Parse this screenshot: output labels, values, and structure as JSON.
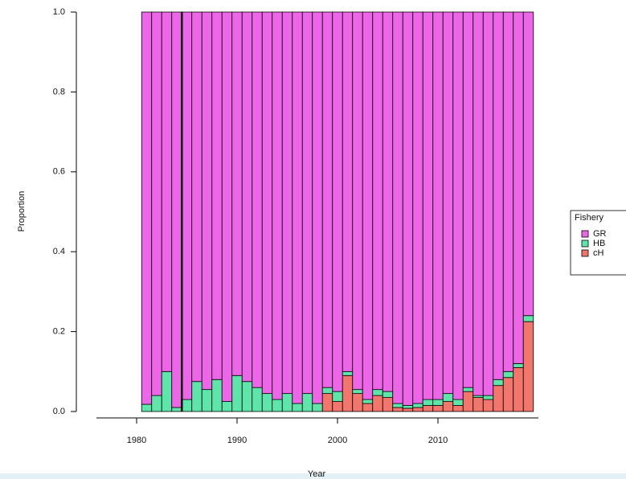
{
  "chart_data": {
    "type": "stacked-bar",
    "x_label": "Year",
    "y_label": "Proportion",
    "legend_title": "Fishery",
    "legend_position": "right",
    "x": [
      1981,
      1982,
      1983,
      1984,
      1985,
      1986,
      1987,
      1988,
      1989,
      1990,
      1991,
      1992,
      1993,
      1994,
      1995,
      1996,
      1997,
      1998,
      1999,
      2000,
      2001,
      2002,
      2003,
      2004,
      2005,
      2006,
      2007,
      2008,
      2009,
      2010,
      2011,
      2012,
      2013,
      2014,
      2015,
      2016,
      2017,
      2018,
      2019
    ],
    "series": [
      {
        "name": "GR",
        "color": "#ee66e8",
        "values": [
          0.982,
          0.96,
          0.9,
          0.99,
          0.97,
          0.925,
          0.945,
          0.92,
          0.975,
          0.91,
          0.925,
          0.94,
          0.955,
          0.97,
          0.955,
          0.98,
          0.955,
          0.98,
          0.94,
          0.95,
          0.9,
          0.945,
          0.97,
          0.945,
          0.95,
          0.98,
          0.985,
          0.98,
          0.97,
          0.97,
          0.955,
          0.97,
          0.94,
          0.96,
          0.96,
          0.92,
          0.9,
          0.88,
          0.76
        ]
      },
      {
        "name": "HB",
        "color": "#5ee6aa",
        "values": [
          0.018,
          0.04,
          0.1,
          0.01,
          0.03,
          0.075,
          0.055,
          0.08,
          0.025,
          0.09,
          0.075,
          0.06,
          0.045,
          0.03,
          0.045,
          0.02,
          0.045,
          0.02,
          0.015,
          0.025,
          0.01,
          0.01,
          0.01,
          0.015,
          0.015,
          0.01,
          0.007,
          0.01,
          0.015,
          0.015,
          0.02,
          0.015,
          0.01,
          0.005,
          0.01,
          0.015,
          0.015,
          0.01,
          0.015
        ]
      },
      {
        "name": "cH",
        "color": "#f2766c",
        "values": [
          0,
          0,
          0,
          0,
          0,
          0,
          0,
          0,
          0,
          0,
          0,
          0,
          0,
          0,
          0,
          0,
          0,
          0,
          0.045,
          0.025,
          0.09,
          0.045,
          0.02,
          0.04,
          0.035,
          0.01,
          0.008,
          0.01,
          0.015,
          0.015,
          0.025,
          0.015,
          0.05,
          0.035,
          0.03,
          0.065,
          0.085,
          0.11,
          0.225
        ]
      }
    ],
    "vline": 1984.5,
    "xlim": [
      1976,
      2020
    ],
    "xticks": [
      1980,
      1990,
      2000,
      2010
    ],
    "ylim": [
      0,
      1
    ],
    "yticks": [
      {
        "value": 0,
        "label": "0.0"
      },
      0.2,
      0.4,
      0.6,
      0.8,
      {
        "value": 1,
        "label": "1.0"
      }
    ]
  }
}
